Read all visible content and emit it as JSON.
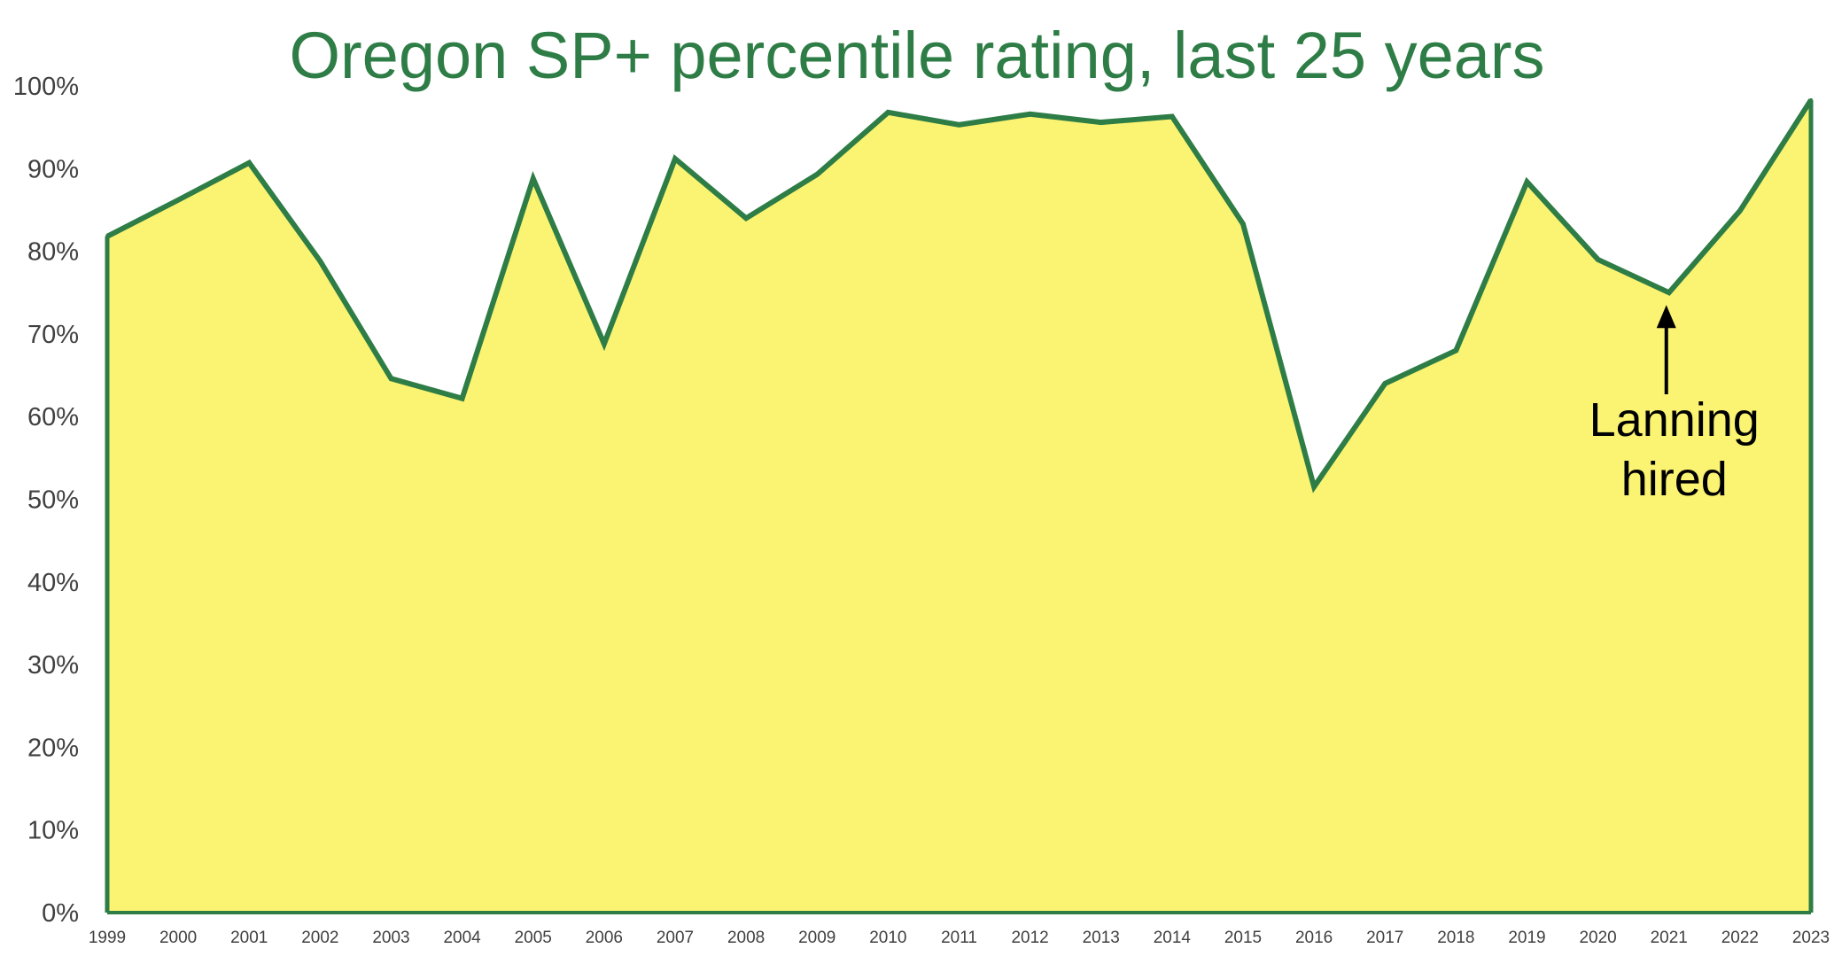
{
  "chart_data": {
    "type": "area",
    "title": "Oregon SP+ percentile rating, last 25 years",
    "xlabel": "",
    "ylabel": "",
    "x": [
      "1999",
      "2000",
      "2001",
      "2002",
      "2003",
      "2004",
      "2005",
      "2006",
      "2007",
      "2008",
      "2009",
      "2010",
      "2011",
      "2012",
      "2013",
      "2014",
      "2015",
      "2016",
      "2017",
      "2018",
      "2019",
      "2020",
      "2021",
      "2022",
      "2023"
    ],
    "series": [
      {
        "values": [
          81.8,
          86.2,
          90.7,
          78.8,
          64.6,
          62.2,
          88.8,
          68.8,
          91.2,
          84.0,
          89.3,
          96.8,
          95.3,
          96.6,
          95.6,
          96.3,
          83.3,
          51.5,
          64.0,
          68.0,
          88.4,
          79.0,
          75.0,
          84.9,
          98.3
        ]
      }
    ],
    "ylim": [
      0,
      100
    ],
    "y_ticks": [
      "0%",
      "10%",
      "20%",
      "30%",
      "40%",
      "50%",
      "60%",
      "70%",
      "80%",
      "90%",
      "100%"
    ],
    "grid": false,
    "legend": "none",
    "colors": {
      "fill": "#fbf372",
      "line": "#2e7d46",
      "title": "#2e7d46",
      "axis": "#2e7d46",
      "tick_text": "#404040",
      "annotation": "#000000"
    },
    "annotations": [
      {
        "x": "2021",
        "lines": [
          "Lanning",
          "hired"
        ],
        "arrow": "up"
      }
    ]
  }
}
